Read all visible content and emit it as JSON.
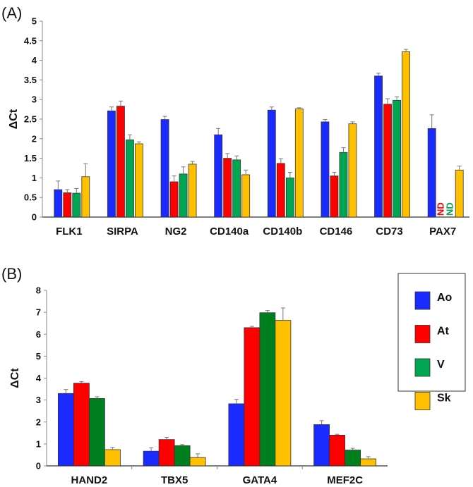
{
  "series_colors": {
    "Ao": "#1a2bff",
    "At": "#ff0000",
    "V": "#00a651",
    "Sk": "#ffc000",
    "V_panelB": "#007f1f"
  },
  "chart_data": [
    {
      "panel": "(A)",
      "type": "bar",
      "ylabel": "ΔCt",
      "ylim": [
        0,
        5
      ],
      "yticks": [
        "0",
        "0.5",
        "1",
        "1.5",
        "2",
        "2.5",
        "3",
        "3.5",
        "4",
        "4.5",
        "5"
      ],
      "categories": [
        "FLK1",
        "SIRPA",
        "NG2",
        "CD140a",
        "CD140b",
        "CD146",
        "CD73",
        "PAX7"
      ],
      "series": [
        {
          "name": "Ao",
          "values": [
            0.7,
            2.71,
            2.49,
            2.1,
            2.73,
            2.43,
            3.6,
            2.26
          ],
          "errors": [
            0.22,
            0.1,
            0.08,
            0.16,
            0.08,
            0.06,
            0.07,
            0.35
          ]
        },
        {
          "name": "At",
          "values": [
            0.62,
            2.83,
            0.9,
            1.5,
            1.37,
            1.05,
            2.88,
            null
          ],
          "errors": [
            0.08,
            0.13,
            0.15,
            0.12,
            0.12,
            0.09,
            0.14,
            null
          ]
        },
        {
          "name": "V",
          "values": [
            0.61,
            1.97,
            1.1,
            1.46,
            1.0,
            1.65,
            2.98,
            null
          ],
          "errors": [
            0.12,
            0.13,
            0.18,
            0.1,
            0.14,
            0.12,
            0.09,
            null
          ]
        },
        {
          "name": "Sk",
          "values": [
            1.03,
            1.87,
            1.35,
            1.08,
            2.76,
            2.38,
            4.22,
            1.2
          ],
          "errors": [
            0.33,
            0.05,
            0.07,
            0.12,
            0.03,
            0.05,
            0.06,
            0.1
          ]
        }
      ],
      "annotations": [
        "ND",
        "ND"
      ]
    },
    {
      "panel": "(B)",
      "type": "bar",
      "ylabel": "ΔCt",
      "ylim": [
        0,
        8
      ],
      "yticks": [
        "0",
        "1",
        "2",
        "3",
        "4",
        "5",
        "6",
        "7",
        "8"
      ],
      "categories": [
        "HAND2",
        "TBX5",
        "GATA4",
        "MEF2C"
      ],
      "series": [
        {
          "name": "Ao",
          "values": [
            3.3,
            0.67,
            2.83,
            1.88
          ],
          "errors": [
            0.18,
            0.15,
            0.2,
            0.18
          ]
        },
        {
          "name": "At",
          "values": [
            3.77,
            1.2,
            6.3,
            1.4
          ],
          "errors": [
            0.07,
            0.1,
            0.06,
            0.04
          ]
        },
        {
          "name": "V",
          "values": [
            3.07,
            0.92,
            6.98,
            0.72
          ],
          "errors": [
            0.08,
            0.05,
            0.1,
            0.08
          ]
        },
        {
          "name": "Sk",
          "values": [
            0.74,
            0.38,
            6.63,
            0.32
          ],
          "errors": [
            0.1,
            0.17,
            0.57,
            0.1
          ]
        }
      ],
      "legend": {
        "position": "right",
        "entries": [
          "Ao",
          "At",
          "V",
          "Sk"
        ]
      }
    }
  ]
}
